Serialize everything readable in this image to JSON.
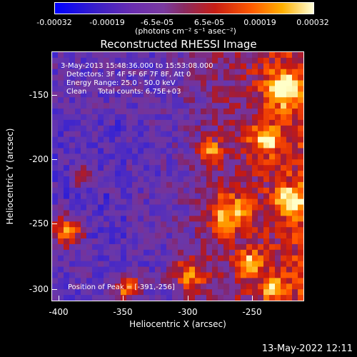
{
  "colorbar": {
    "ticks": [
      "-0.00032",
      "-0.00019",
      "-6.5e-05",
      "6.5e-05",
      "0.00019",
      "0.00032"
    ],
    "units": "(photons cm⁻² s⁻¹ asec⁻²)"
  },
  "title": "Reconstructed RHESSI Image",
  "info": {
    "time": "3-May-2013 15:48:36.000 to 15:53:08.000",
    "detectors": "Detectors: 3F 4F 5F 6F 7F 8F, Att 0",
    "energy": "Energy Range: 25.0 - 50.0 keV",
    "clean": "Clean     Total counts: 6.75E+03",
    "peak": "Position of Peak = [-391,-256]"
  },
  "axes": {
    "xlabel": "Heliocentric X (arcsec)",
    "ylabel": "Heliocentric Y (arcsec)",
    "xticks": [
      "-400",
      "-350",
      "-300",
      "-250"
    ],
    "yticks": [
      "-150",
      "-200",
      "-250",
      "-300"
    ]
  },
  "timestamp": "13-May-2022 12:11"
}
